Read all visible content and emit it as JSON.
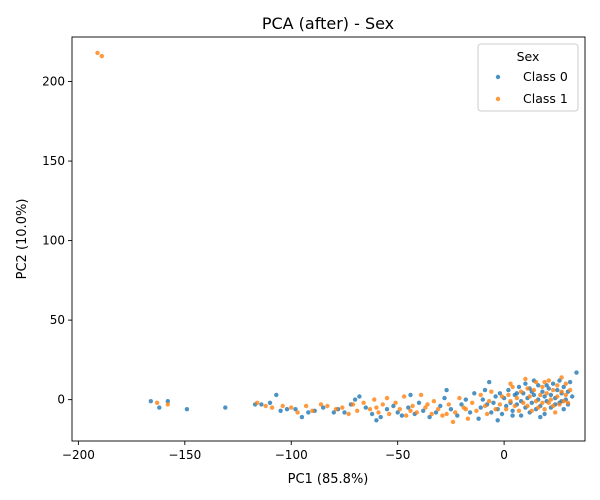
{
  "chart_data": {
    "type": "scatter",
    "title": "PCA (after) - Sex",
    "xlabel": "PC1 (85.8%)",
    "ylabel": "PC2 (10.0%)",
    "xlim": [
      -203,
      38
    ],
    "ylim": [
      -26,
      228
    ],
    "xticks": [
      -200,
      -150,
      -100,
      -50,
      0
    ],
    "yticks": [
      0,
      50,
      100,
      150,
      200
    ],
    "xtick_labels": [
      "−200",
      "−150",
      "−100",
      "−50",
      "0"
    ],
    "ytick_labels": [
      "0",
      "50",
      "100",
      "150",
      "200"
    ],
    "grid": false,
    "legend": {
      "title": "Sex",
      "position": "top-right"
    },
    "series": [
      {
        "name": "Class 0",
        "color": "#1f77b4",
        "points": [
          [
            -166,
            -1
          ],
          [
            -162,
            -5
          ],
          [
            -158,
            -1
          ],
          [
            -149,
            -6
          ],
          [
            -131,
            -5
          ],
          [
            -117,
            -3
          ],
          [
            -114,
            -3
          ],
          [
            -110,
            -2
          ],
          [
            -107,
            3
          ],
          [
            -105,
            -7
          ],
          [
            -102,
            -6
          ],
          [
            -98,
            -6
          ],
          [
            -95,
            -11
          ],
          [
            -92,
            -8
          ],
          [
            -89,
            -7
          ],
          [
            -85,
            -5
          ],
          [
            -80,
            -8
          ],
          [
            -78,
            -6
          ],
          [
            -75,
            -8
          ],
          [
            -72,
            -3
          ],
          [
            -70,
            0
          ],
          [
            -68,
            2
          ],
          [
            -65,
            -5
          ],
          [
            -62,
            -9
          ],
          [
            -60,
            -13
          ],
          [
            -58,
            -11
          ],
          [
            -55,
            -6
          ],
          [
            -52,
            -4
          ],
          [
            -50,
            -8
          ],
          [
            -48,
            -10
          ],
          [
            -45,
            -5
          ],
          [
            -44,
            3
          ],
          [
            -42,
            -9
          ],
          [
            -40,
            -2
          ],
          [
            -38,
            -7
          ],
          [
            -35,
            -11
          ],
          [
            -32,
            -8
          ],
          [
            -30,
            -4
          ],
          [
            -28,
            1
          ],
          [
            -27,
            6
          ],
          [
            -25,
            -6
          ],
          [
            -22,
            -10
          ],
          [
            -20,
            -3
          ],
          [
            -18,
            0
          ],
          [
            -16,
            -8
          ],
          [
            -14,
            4
          ],
          [
            -12,
            -12
          ],
          [
            -11,
            -5
          ],
          [
            -10,
            0
          ],
          [
            -9,
            6
          ],
          [
            -8,
            -3
          ],
          [
            -7,
            11
          ],
          [
            -6,
            -8
          ],
          [
            -5,
            -2
          ],
          [
            -4,
            2
          ],
          [
            -3,
            -6
          ],
          [
            -2,
            4
          ],
          [
            -1,
            -9
          ],
          [
            0,
            1
          ],
          [
            1,
            -4
          ],
          [
            2,
            6
          ],
          [
            3,
            -2
          ],
          [
            4,
            -7
          ],
          [
            5,
            3
          ],
          [
            6,
            -3
          ],
          [
            7,
            8
          ],
          [
            8,
            -1
          ],
          [
            8,
            -10
          ],
          [
            9,
            4
          ],
          [
            10,
            -5
          ],
          [
            11,
            1
          ],
          [
            12,
            7
          ],
          [
            12,
            -8
          ],
          [
            13,
            -2
          ],
          [
            14,
            3
          ],
          [
            15,
            -6
          ],
          [
            16,
            9
          ],
          [
            16,
            0
          ],
          [
            17,
            -4
          ],
          [
            18,
            5
          ],
          [
            19,
            -9
          ],
          [
            19,
            2
          ],
          [
            20,
            -1
          ],
          [
            21,
            7
          ],
          [
            22,
            -5
          ],
          [
            22,
            3
          ],
          [
            23,
            10
          ],
          [
            24,
            -3
          ],
          [
            24,
            1
          ],
          [
            25,
            6
          ],
          [
            26,
            -2
          ],
          [
            26,
            12
          ],
          [
            27,
            4
          ],
          [
            28,
            -6
          ],
          [
            28,
            8
          ],
          [
            29,
            0
          ],
          [
            30,
            5
          ],
          [
            31,
            11
          ],
          [
            32,
            2
          ],
          [
            34,
            17
          ],
          [
            10,
            10
          ],
          [
            14,
            12
          ],
          [
            17,
            -11
          ],
          [
            20,
            9
          ],
          [
            -3,
            -13
          ],
          [
            4,
            -10
          ],
          [
            27,
            -1
          ],
          [
            30,
            -3
          ],
          [
            6,
            4
          ],
          [
            13,
            5
          ]
        ]
      },
      {
        "name": "Class 1",
        "color": "#ff7f0e",
        "points": [
          [
            -191,
            218
          ],
          [
            -189,
            216
          ],
          [
            -163,
            -2
          ],
          [
            -158,
            -3
          ],
          [
            -116,
            -2
          ],
          [
            -112,
            -4
          ],
          [
            -109,
            -5
          ],
          [
            -104,
            -4
          ],
          [
            -100,
            -5
          ],
          [
            -97,
            -8
          ],
          [
            -93,
            -4
          ],
          [
            -90,
            -7
          ],
          [
            -86,
            -3
          ],
          [
            -83,
            -4
          ],
          [
            -79,
            -6
          ],
          [
            -76,
            -5
          ],
          [
            -73,
            -9
          ],
          [
            -71,
            -3
          ],
          [
            -69,
            -7
          ],
          [
            -66,
            -2
          ],
          [
            -63,
            -6
          ],
          [
            -61,
            0
          ],
          [
            -59,
            -8
          ],
          [
            -57,
            -3
          ],
          [
            -54,
            -9
          ],
          [
            -51,
            -2
          ],
          [
            -49,
            -6
          ],
          [
            -47,
            2
          ],
          [
            -46,
            -10
          ],
          [
            -43,
            -4
          ],
          [
            -41,
            -8
          ],
          [
            -39,
            3
          ],
          [
            -37,
            -5
          ],
          [
            -34,
            -9
          ],
          [
            -33,
            -1
          ],
          [
            -31,
            -6
          ],
          [
            -29,
            -10
          ],
          [
            -26,
            -3
          ],
          [
            -24,
            -14
          ],
          [
            -23,
            -8
          ],
          [
            -21,
            1
          ],
          [
            -19,
            -5
          ],
          [
            -17,
            -12
          ],
          [
            -15,
            -2
          ],
          [
            -13,
            -7
          ],
          [
            -11,
            3
          ],
          [
            -9,
            -4
          ],
          [
            -7,
            -1
          ],
          [
            -6,
            5
          ],
          [
            -4,
            -6
          ],
          [
            -2,
            -3
          ],
          [
            -1,
            2
          ],
          [
            1,
            -6
          ],
          [
            2,
            3
          ],
          [
            3,
            -1
          ],
          [
            4,
            8
          ],
          [
            5,
            -4
          ],
          [
            6,
            1
          ],
          [
            7,
            -7
          ],
          [
            8,
            5
          ],
          [
            9,
            -2
          ],
          [
            10,
            13
          ],
          [
            11,
            -4
          ],
          [
            12,
            2
          ],
          [
            13,
            -7
          ],
          [
            14,
            6
          ],
          [
            15,
            -1
          ],
          [
            15,
            11
          ],
          [
            16,
            -5
          ],
          [
            17,
            3
          ],
          [
            18,
            -2
          ],
          [
            18,
            8
          ],
          [
            19,
            -6
          ],
          [
            20,
            4
          ],
          [
            21,
            -2
          ],
          [
            21,
            12
          ],
          [
            22,
            0
          ],
          [
            23,
            -4
          ],
          [
            23,
            6
          ],
          [
            24,
            -8
          ],
          [
            25,
            2
          ],
          [
            25,
            9
          ],
          [
            26,
            -3
          ],
          [
            27,
            5
          ],
          [
            27,
            14
          ],
          [
            28,
            -1
          ],
          [
            29,
            3
          ],
          [
            29,
            10
          ],
          [
            30,
            -2
          ],
          [
            31,
            6
          ],
          [
            -60,
            -5
          ],
          [
            -55,
            1
          ],
          [
            -44,
            -7
          ],
          [
            -36,
            -3
          ],
          [
            -27,
            -9
          ],
          [
            -18,
            -6
          ],
          [
            -8,
            -9
          ],
          [
            3,
            10
          ],
          [
            11,
            7
          ],
          [
            19,
            11
          ]
        ]
      }
    ]
  }
}
